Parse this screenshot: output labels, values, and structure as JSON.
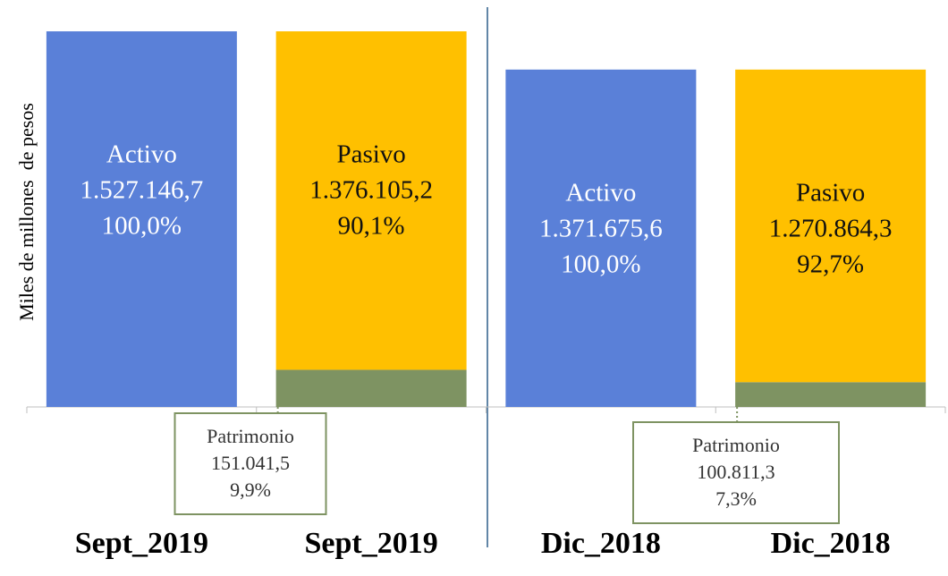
{
  "chart_data": {
    "type": "stacked_bar",
    "y_label": "Miles de millones  de pesos",
    "categories": [
      "Sept_2019",
      "Sept_2019",
      "Dic_2018",
      "Dic_2018"
    ],
    "ylim": [
      0,
      1600000
    ],
    "series": [
      {
        "name": "Activo",
        "color": "#5a80d8",
        "values": [
          1527146.7,
          null,
          1371675.6,
          null
        ],
        "value_labels": [
          "1.527.146,7",
          null,
          "1.371.675,6",
          null
        ],
        "shares": [
          100.0,
          null,
          100.0,
          null
        ],
        "share_labels": [
          "100,0%",
          null,
          "100,0%",
          null
        ]
      },
      {
        "name": "Patrimonio",
        "color": "#7e9362",
        "values": [
          null,
          151041.5,
          null,
          100811.3
        ],
        "value_labels": [
          null,
          "151.041,5",
          null,
          "100.811,3"
        ],
        "shares": [
          null,
          9.9,
          null,
          7.3
        ],
        "share_labels": [
          null,
          "9,9%",
          null,
          "7,3%"
        ]
      },
      {
        "name": "Pasivo",
        "color": "#ffc000",
        "values": [
          null,
          1376105.2,
          null,
          1270864.3
        ],
        "value_labels": [
          null,
          "1.376.105,2",
          null,
          "1.270.864,3"
        ],
        "shares": [
          null,
          90.1,
          null,
          92.7
        ],
        "share_labels": [
          null,
          "90,1%",
          null,
          "92,7%"
        ]
      }
    ]
  }
}
